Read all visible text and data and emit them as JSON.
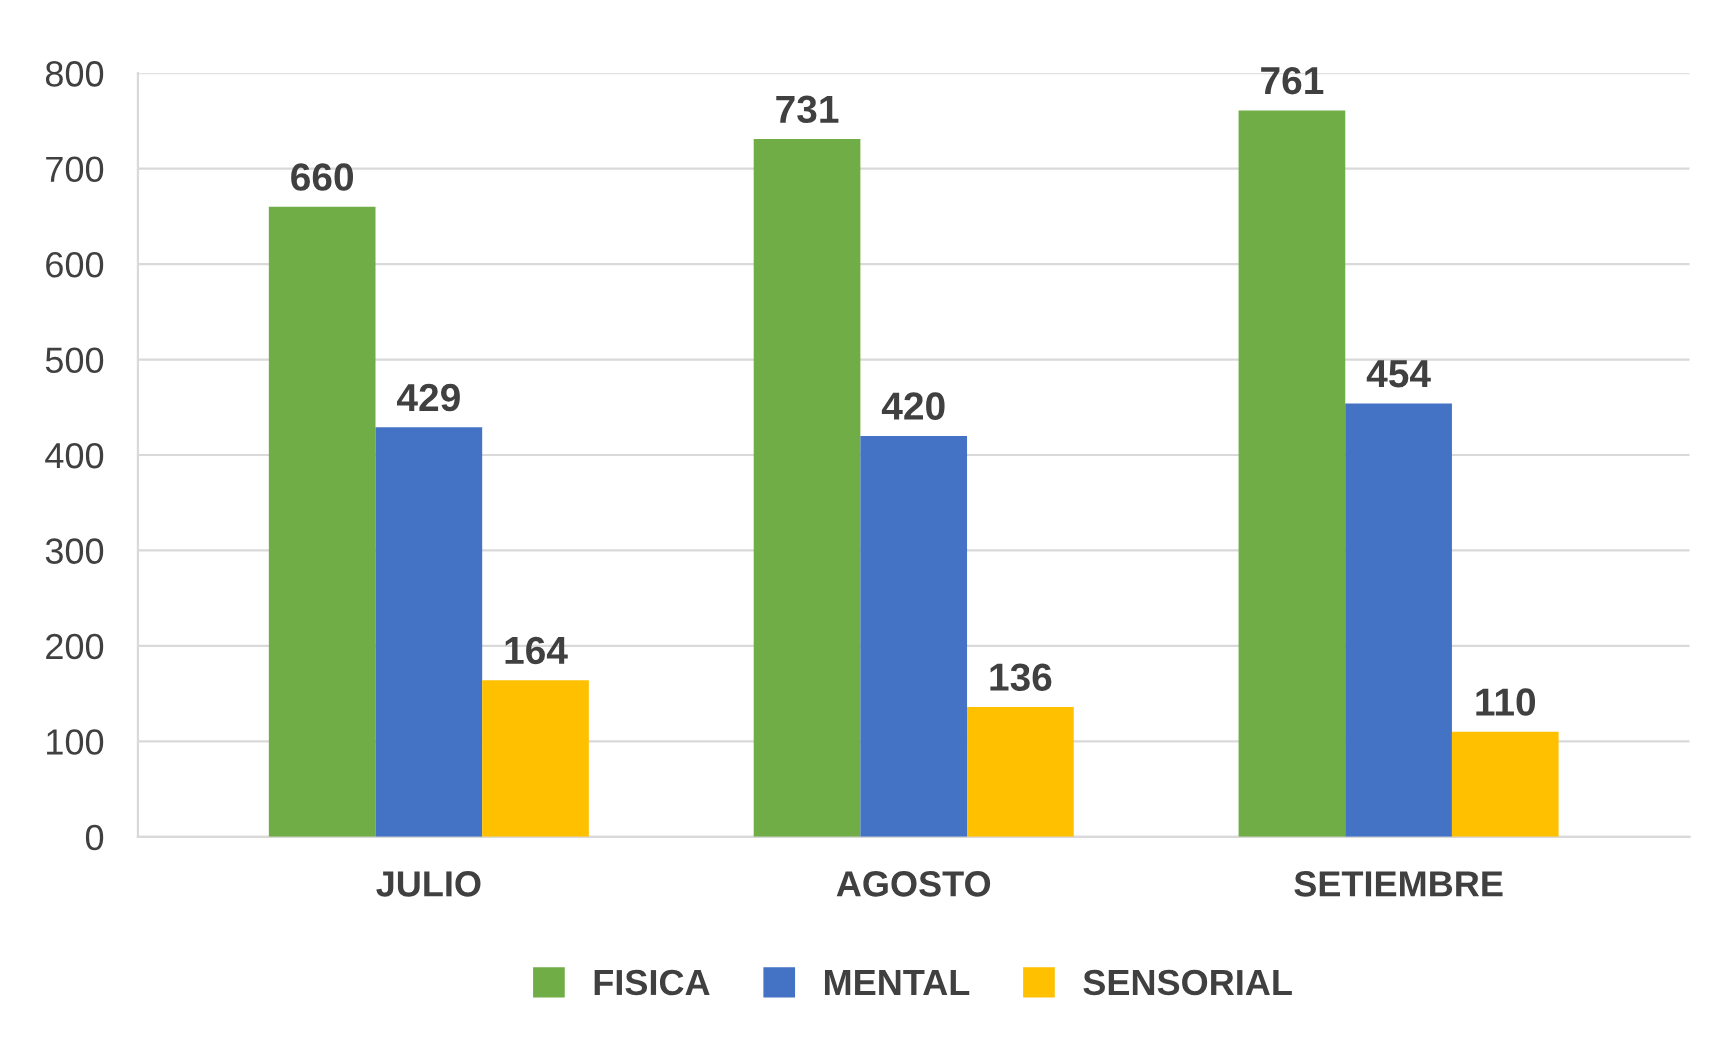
{
  "chart_data": {
    "type": "bar",
    "categories": [
      "JULIO",
      "AGOSTO",
      "SETIEMBRE"
    ],
    "series": [
      {
        "name": "FISICA",
        "color": "#70ad47",
        "values": [
          660,
          731,
          761
        ]
      },
      {
        "name": "MENTAL",
        "color": "#4472c4",
        "values": [
          429,
          420,
          454
        ]
      },
      {
        "name": "SENSORIAL",
        "color": "#ffc000",
        "values": [
          164,
          136,
          110
        ]
      }
    ],
    "ylim": [
      0,
      800
    ],
    "yticks": [
      0,
      100,
      200,
      300,
      400,
      500,
      600,
      700,
      800
    ],
    "grid": "y",
    "legend": "bottom",
    "data_labels": true
  }
}
